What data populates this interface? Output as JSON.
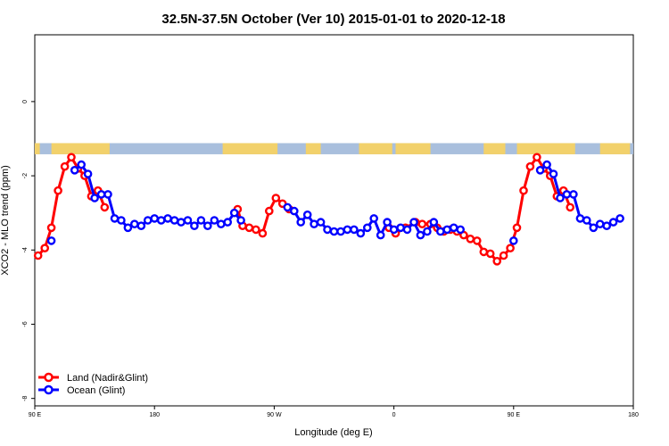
{
  "chart_data": {
    "type": "line",
    "title": "32.5N-37.5N October (Ver 10)   2015-01-01 to 2020-12-18",
    "xlabel": "Longitude (deg E)",
    "ylabel": "XCO2 - MLO trend (ppm)",
    "xlim": [
      90,
      450
    ],
    "ylim": [
      -8.2,
      1.8
    ],
    "x_ticks": [
      {
        "value": 90,
        "label": "90 E"
      },
      {
        "value": 162,
        "label": "180"
      },
      {
        "value": 234,
        "label": "90 W"
      },
      {
        "value": 306,
        "label": "0"
      },
      {
        "value": 378,
        "label": "90 E"
      },
      {
        "value": 450,
        "label": "180"
      }
    ],
    "y_ticks": [
      {
        "value": 0,
        "label": "0"
      },
      {
        "value": -2,
        "label": "-2"
      },
      {
        "value": -4,
        "label": "-4"
      },
      {
        "value": -6,
        "label": "-6"
      },
      {
        "value": -8,
        "label": "-8"
      }
    ],
    "landmask_band": {
      "y_top": -1.12,
      "y_bottom": -1.42,
      "ocean_color": "#a9bfdd",
      "land_color": "#f2d16b"
    },
    "legend_position": "bottom-left",
    "series": [
      {
        "name": "Land (Nadir&Glint)",
        "color": "#ff0000",
        "points": [
          [
            92,
            -4.15
          ],
          [
            96,
            -3.95
          ],
          [
            100,
            -3.4
          ],
          [
            104,
            -2.4
          ],
          [
            108,
            -1.75
          ],
          [
            112,
            -1.5
          ],
          [
            116,
            -1.8
          ],
          [
            120,
            -2.0
          ],
          [
            124,
            -2.55
          ],
          [
            128,
            -2.4
          ],
          [
            132,
            -2.85
          ],
          [
            212,
            -2.9
          ],
          [
            215,
            -3.35
          ],
          [
            219,
            -3.4
          ],
          [
            223,
            -3.45
          ],
          [
            227,
            -3.55
          ],
          [
            231,
            -2.95
          ],
          [
            235,
            -2.6
          ],
          [
            239,
            -2.75
          ],
          [
            243,
            -2.9
          ],
          [
            303,
            -3.4
          ],
          [
            307,
            -3.55
          ],
          [
            313,
            -3.4
          ],
          [
            319,
            -3.25
          ],
          [
            323,
            -3.3
          ],
          [
            328,
            -3.3
          ],
          [
            332,
            -3.4
          ],
          [
            336,
            -3.5
          ],
          [
            340,
            -3.45
          ],
          [
            344,
            -3.5
          ],
          [
            348,
            -3.6
          ],
          [
            352,
            -3.7
          ],
          [
            356,
            -3.75
          ],
          [
            360,
            -4.05
          ],
          [
            364,
            -4.1
          ],
          [
            368,
            -4.3
          ],
          [
            372,
            -4.15
          ],
          [
            376,
            -3.95
          ],
          [
            380,
            -3.4
          ],
          [
            384,
            -2.4
          ],
          [
            388,
            -1.75
          ],
          [
            392,
            -1.5
          ],
          [
            396,
            -1.8
          ],
          [
            400,
            -2.0
          ],
          [
            404,
            -2.55
          ],
          [
            408,
            -2.4
          ],
          [
            412,
            -2.85
          ]
        ]
      },
      {
        "name": "Ocean (Glint)",
        "color": "#0000ff",
        "points": [
          [
            100,
            -3.75
          ],
          [
            114,
            -1.85
          ],
          [
            118,
            -1.7
          ],
          [
            122,
            -1.95
          ],
          [
            126,
            -2.6
          ],
          [
            130,
            -2.5
          ],
          [
            134,
            -2.5
          ],
          [
            138,
            -3.15
          ],
          [
            142,
            -3.2
          ],
          [
            146,
            -3.4
          ],
          [
            150,
            -3.3
          ],
          [
            154,
            -3.35
          ],
          [
            158,
            -3.2
          ],
          [
            162,
            -3.15
          ],
          [
            166,
            -3.2
          ],
          [
            170,
            -3.15
          ],
          [
            174,
            -3.2
          ],
          [
            178,
            -3.25
          ],
          [
            182,
            -3.2
          ],
          [
            186,
            -3.35
          ],
          [
            190,
            -3.2
          ],
          [
            194,
            -3.35
          ],
          [
            198,
            -3.2
          ],
          [
            202,
            -3.3
          ],
          [
            206,
            -3.25
          ],
          [
            210,
            -3.0
          ],
          [
            214,
            -3.2
          ],
          [
            242,
            -2.85
          ],
          [
            246,
            -2.95
          ],
          [
            250,
            -3.25
          ],
          [
            254,
            -3.05
          ],
          [
            258,
            -3.3
          ],
          [
            262,
            -3.25
          ],
          [
            266,
            -3.45
          ],
          [
            270,
            -3.5
          ],
          [
            274,
            -3.5
          ],
          [
            278,
            -3.45
          ],
          [
            282,
            -3.45
          ],
          [
            286,
            -3.55
          ],
          [
            290,
            -3.4
          ],
          [
            294,
            -3.15
          ],
          [
            298,
            -3.6
          ],
          [
            302,
            -3.25
          ],
          [
            306,
            -3.45
          ],
          [
            310,
            -3.4
          ],
          [
            314,
            -3.45
          ],
          [
            318,
            -3.25
          ],
          [
            322,
            -3.6
          ],
          [
            326,
            -3.5
          ],
          [
            330,
            -3.25
          ],
          [
            334,
            -3.5
          ],
          [
            338,
            -3.45
          ],
          [
            342,
            -3.4
          ],
          [
            346,
            -3.45
          ],
          [
            378,
            -3.75
          ],
          [
            394,
            -1.85
          ],
          [
            398,
            -1.7
          ],
          [
            402,
            -1.95
          ],
          [
            406,
            -2.6
          ],
          [
            410,
            -2.5
          ],
          [
            414,
            -2.5
          ],
          [
            418,
            -3.15
          ],
          [
            422,
            -3.2
          ],
          [
            426,
            -3.4
          ],
          [
            430,
            -3.3
          ],
          [
            434,
            -3.35
          ],
          [
            438,
            -3.25
          ],
          [
            442,
            -3.15
          ]
        ]
      }
    ]
  }
}
